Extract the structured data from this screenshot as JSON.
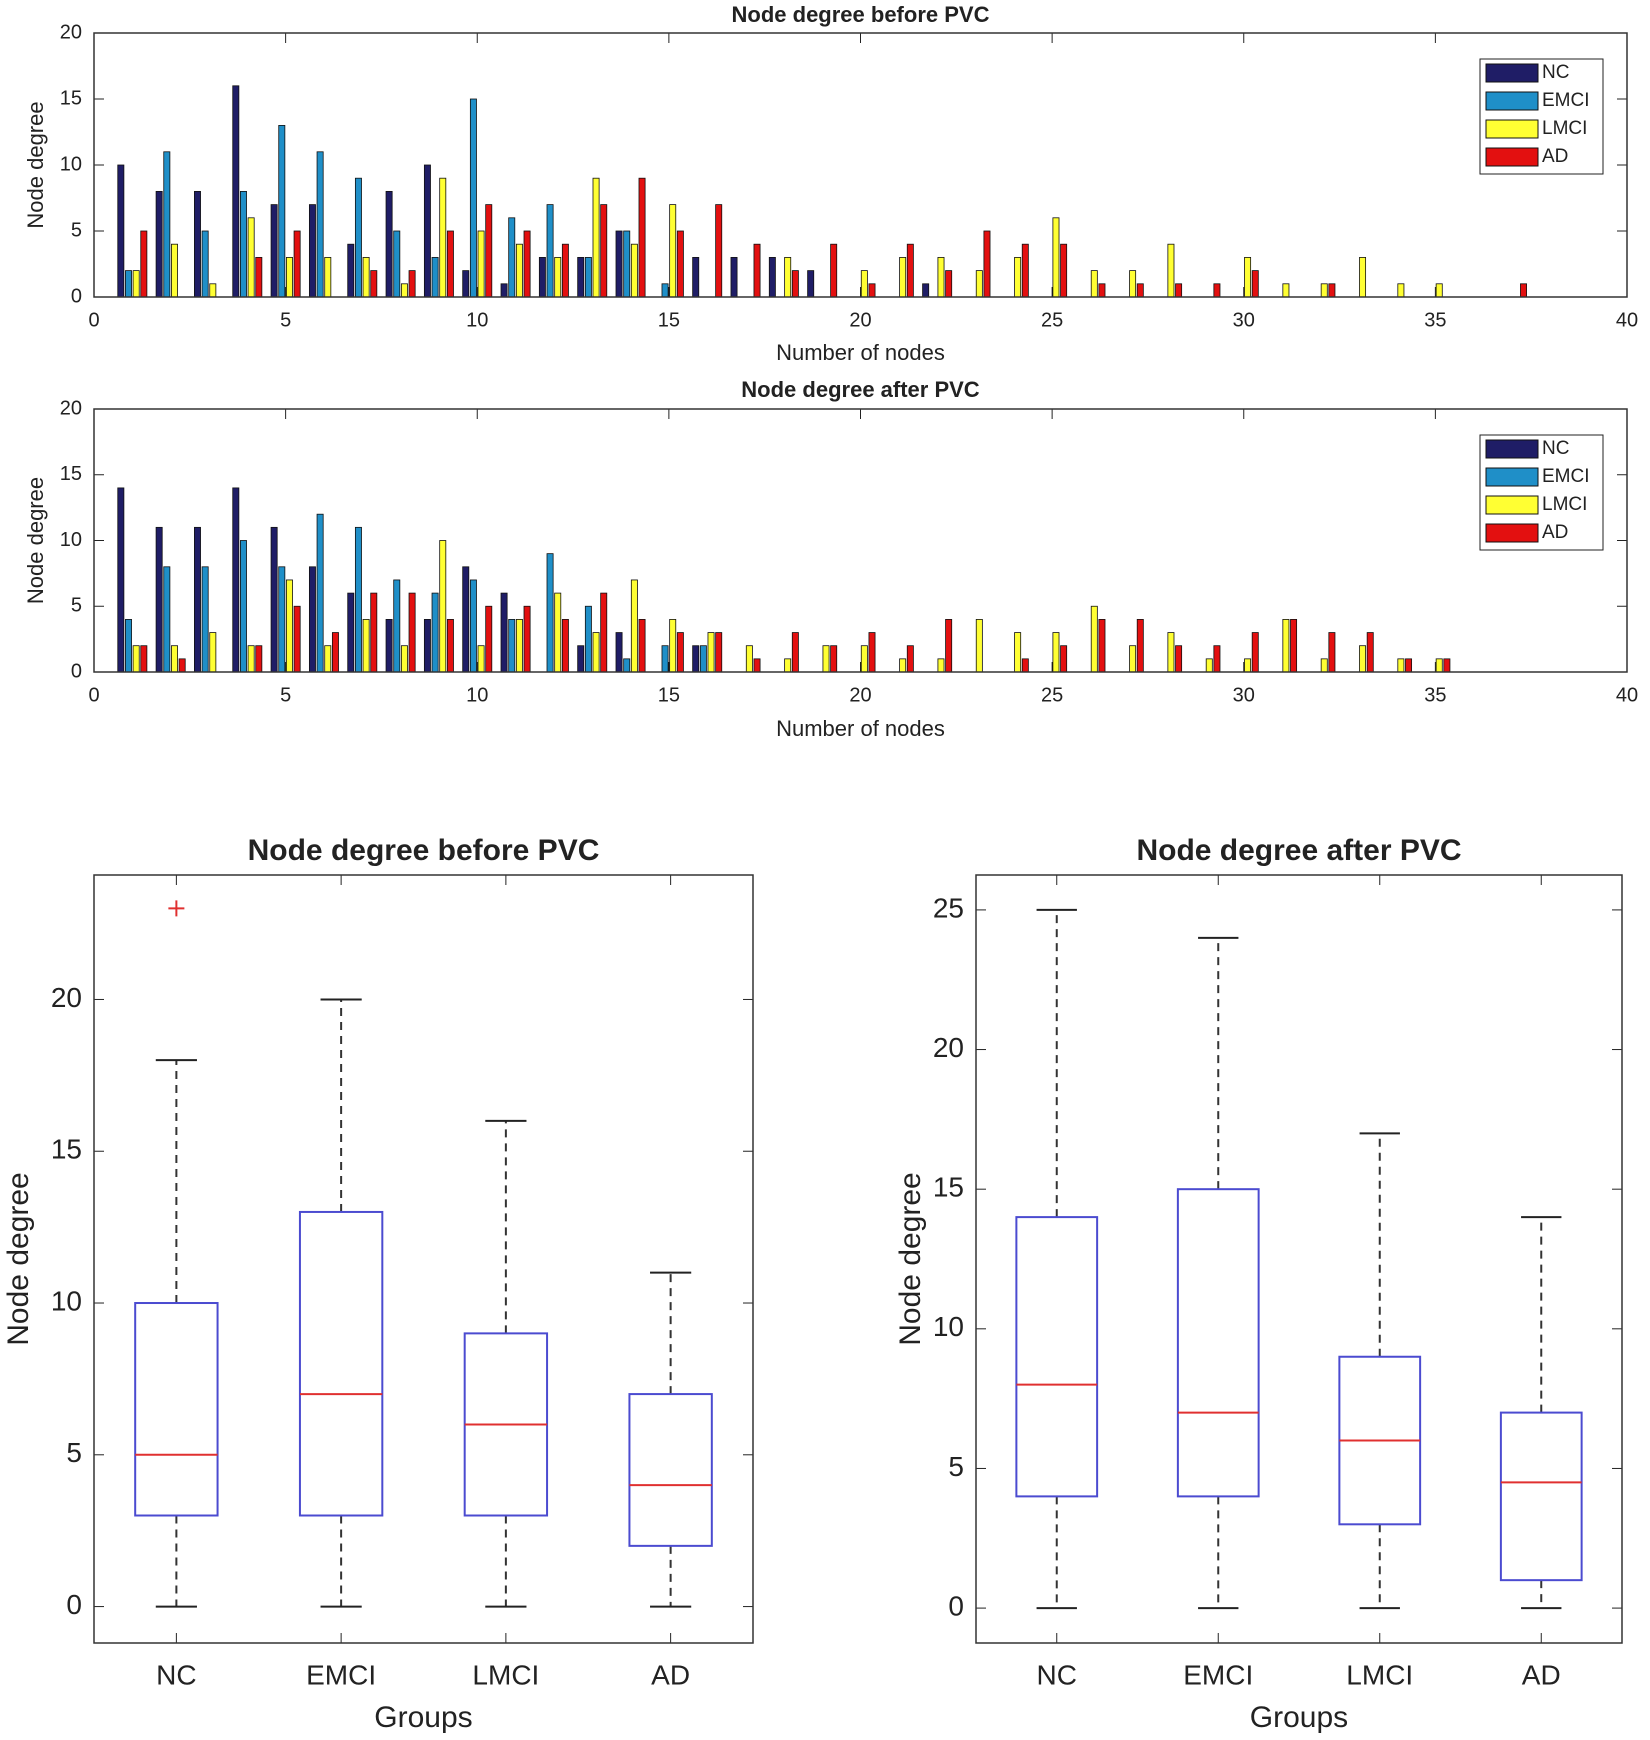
{
  "chart_data": [
    {
      "type": "bar",
      "title": "Node degree before PVC",
      "x_label": "Number of nodes",
      "y_label": "Node degree",
      "x": [
        1,
        2,
        3,
        4,
        5,
        6,
        7,
        8,
        9,
        10,
        11,
        12,
        13,
        14,
        15,
        16,
        17,
        18,
        19,
        20,
        21,
        22,
        23,
        24,
        25,
        26,
        27,
        28,
        29,
        30,
        31,
        32,
        33,
        34,
        35,
        36,
        37,
        38,
        39
      ],
      "series": [
        {
          "name": "NC",
          "color": "#1f1d66",
          "values": [
            10,
            8,
            8,
            16,
            7,
            7,
            4,
            8,
            10,
            2,
            1,
            3,
            3,
            5,
            0,
            3,
            3,
            3,
            2,
            0,
            0,
            1,
            0,
            0,
            0,
            0,
            0,
            0,
            0,
            0,
            0,
            0,
            0,
            0,
            0,
            0,
            0,
            0,
            0
          ]
        },
        {
          "name": "EMCI",
          "color": "#1f8fc8",
          "values": [
            2,
            11,
            5,
            8,
            13,
            11,
            9,
            5,
            3,
            15,
            6,
            7,
            3,
            5,
            1,
            0,
            0,
            0,
            0,
            0,
            0,
            0,
            0,
            0,
            0,
            0,
            0,
            0,
            0,
            0,
            0,
            0,
            0,
            0,
            0,
            0,
            0,
            0,
            0
          ]
        },
        {
          "name": "LMCI",
          "color": "#ffff33",
          "values": [
            2,
            4,
            1,
            6,
            3,
            3,
            3,
            1,
            9,
            5,
            4,
            3,
            9,
            4,
            7,
            0,
            0,
            3,
            0,
            2,
            3,
            3,
            2,
            3,
            6,
            2,
            2,
            4,
            0,
            3,
            1,
            1,
            3,
            1,
            1,
            0,
            0,
            0,
            0
          ]
        },
        {
          "name": "AD",
          "color": "#e31010",
          "values": [
            5,
            0,
            0,
            3,
            5,
            0,
            2,
            2,
            5,
            7,
            5,
            4,
            7,
            9,
            5,
            7,
            4,
            2,
            4,
            1,
            4,
            2,
            5,
            4,
            4,
            1,
            1,
            1,
            1,
            2,
            0,
            1,
            0,
            0,
            0,
            0,
            1,
            0,
            0
          ]
        }
      ],
      "xlim": [
        0,
        40
      ],
      "xticks": [
        0,
        5,
        10,
        15,
        20,
        25,
        30,
        35,
        40
      ],
      "ylim": [
        0,
        20
      ],
      "yticks": [
        0,
        5,
        10,
        15,
        20
      ],
      "legend": "northeast"
    },
    {
      "type": "bar",
      "title": "Node degree after PVC",
      "x_label": "Number of nodes",
      "y_label": "Node degree",
      "x": [
        1,
        2,
        3,
        4,
        5,
        6,
        7,
        8,
        9,
        10,
        11,
        12,
        13,
        14,
        15,
        16,
        17,
        18,
        19,
        20,
        21,
        22,
        23,
        24,
        25,
        26,
        27,
        28,
        29,
        30,
        31,
        32,
        33,
        34,
        35,
        36,
        37,
        38,
        39
      ],
      "series": [
        {
          "name": "NC",
          "color": "#1f1d66",
          "values": [
            14,
            11,
            11,
            14,
            11,
            8,
            6,
            4,
            4,
            8,
            6,
            0,
            2,
            3,
            0,
            2,
            0,
            0,
            0,
            0,
            0,
            0,
            0,
            0,
            0,
            0,
            0,
            0,
            0,
            0,
            0,
            0,
            0,
            0,
            0,
            0,
            0,
            0,
            0
          ]
        },
        {
          "name": "EMCI",
          "color": "#1f8fc8",
          "values": [
            4,
            8,
            8,
            10,
            8,
            12,
            11,
            7,
            6,
            7,
            4,
            9,
            5,
            1,
            2,
            2,
            0,
            0,
            0,
            0,
            0,
            0,
            0,
            0,
            0,
            0,
            0,
            0,
            0,
            0,
            0,
            0,
            0,
            0,
            0,
            0,
            0,
            0,
            0
          ]
        },
        {
          "name": "LMCI",
          "color": "#ffff33",
          "values": [
            2,
            2,
            3,
            2,
            7,
            2,
            4,
            2,
            10,
            2,
            4,
            6,
            3,
            7,
            4,
            3,
            2,
            1,
            2,
            2,
            1,
            1,
            4,
            3,
            3,
            5,
            2,
            3,
            1,
            1,
            4,
            1,
            2,
            1,
            1,
            0,
            0,
            0,
            0
          ]
        },
        {
          "name": "AD",
          "color": "#e31010",
          "values": [
            2,
            1,
            0,
            2,
            5,
            3,
            6,
            6,
            4,
            5,
            5,
            4,
            6,
            4,
            3,
            3,
            1,
            3,
            2,
            3,
            2,
            4,
            0,
            1,
            2,
            4,
            4,
            2,
            2,
            3,
            4,
            3,
            3,
            1,
            1,
            0,
            0,
            0,
            0
          ]
        }
      ],
      "xlim": [
        0,
        40
      ],
      "xticks": [
        0,
        5,
        10,
        15,
        20,
        25,
        30,
        35,
        40
      ],
      "ylim": [
        0,
        20
      ],
      "yticks": [
        0,
        5,
        10,
        15,
        20
      ],
      "legend": "northeast"
    },
    {
      "type": "box",
      "title": "Node degree before PVC",
      "x_label": "Groups",
      "y_label": "Node degree",
      "categories": [
        "NC",
        "EMCI",
        "LMCI",
        "AD"
      ],
      "boxes": [
        {
          "min": 0,
          "q1": 3,
          "median": 5,
          "q3": 10,
          "max": 18,
          "outliers": [
            23
          ]
        },
        {
          "min": 0,
          "q1": 3,
          "median": 7,
          "q3": 13,
          "max": 20,
          "outliers": []
        },
        {
          "min": 0,
          "q1": 3,
          "median": 6,
          "q3": 9,
          "max": 16,
          "outliers": []
        },
        {
          "min": 0,
          "q1": 2,
          "median": 4,
          "q3": 7,
          "max": 11,
          "outliers": []
        }
      ],
      "ylim": [
        -1.2,
        24.1
      ],
      "yticks": [
        0,
        5,
        10,
        15,
        20
      ],
      "box_color": "#4b4bd0",
      "median_color": "#e03030",
      "outlier_color": "#e03030"
    },
    {
      "type": "box",
      "title": "Node degree after PVC",
      "x_label": "Groups",
      "y_label": "Node degree",
      "categories": [
        "NC",
        "EMCI",
        "LMCI",
        "AD"
      ],
      "boxes": [
        {
          "min": 0,
          "q1": 4,
          "median": 8,
          "q3": 14,
          "max": 25,
          "outliers": []
        },
        {
          "min": 0,
          "q1": 4,
          "median": 7,
          "q3": 15,
          "max": 24,
          "outliers": []
        },
        {
          "min": 0,
          "q1": 3,
          "median": 6,
          "q3": 9,
          "max": 17,
          "outliers": []
        },
        {
          "min": 0,
          "q1": 1,
          "median": 4.5,
          "q3": 7,
          "max": 14,
          "outliers": []
        }
      ],
      "ylim": [
        -1.25,
        26.25
      ],
      "yticks": [
        0,
        5,
        10,
        15,
        20,
        25
      ],
      "box_color": "#4b4bd0",
      "median_color": "#e03030",
      "outlier_color": "#e03030"
    }
  ]
}
